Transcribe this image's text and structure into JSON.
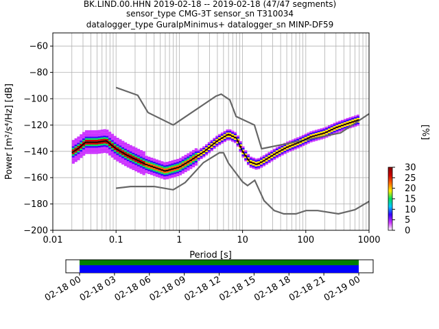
{
  "figure": {
    "title_lines": [
      "BK.LIND.00.HHN   2019-02-18 -- 2019-02-18  (47/47 segments)",
      "sensor_type CMG-3T sensor_sn T310034",
      "datalogger_type GuralpMinimus+ datalogger_sn MINP-DF59"
    ]
  },
  "chart_data": [
    {
      "type": "heatmap",
      "title": "BK.LIND.00.HHN   2019-02-18 -- 2019-02-18  (47/47 segments)",
      "xlabel": "Period [s]",
      "ylabel": "Power [m²/s⁴/Hz] [dB]",
      "x_scale": "log",
      "xlim": [
        0.01,
        1000
      ],
      "ylim": [
        -200,
        -50
      ],
      "x_ticks": [
        0.01,
        0.1,
        1,
        10,
        100,
        1000
      ],
      "x_tick_labels": [
        "0.01",
        "0.1",
        "1",
        "10",
        "100",
        "1000"
      ],
      "y_ticks": [
        -200,
        -180,
        -160,
        -140,
        -120,
        -100,
        -80,
        -60
      ],
      "y_tick_labels": [
        "−200",
        "−180",
        "−160",
        "−140",
        "−120",
        "−100",
        "−80",
        "−60"
      ],
      "grid": true,
      "colorbar": {
        "label": "[%]",
        "range": [
          0,
          30
        ],
        "ticks": [
          0,
          5,
          10,
          15,
          20,
          25,
          30
        ],
        "tick_labels": [
          "0",
          "5",
          "10",
          "15",
          "20",
          "25",
          "30"
        ],
        "colors": [
          "#ffffff",
          "#cc33ff",
          "#3300ff",
          "#00c8ff",
          "#00e060",
          "#ffee00",
          "#ff6600",
          "#cc0000",
          "#880000"
        ]
      },
      "series": [
        {
          "role": "high_noise_model",
          "x": [
            0.1,
            0.22,
            0.32,
            0.8,
            3.8,
            4.6,
            6.3,
            7.9,
            15.4,
            20,
            354.8,
            1000
          ],
          "y": [
            -91.5,
            -97.4,
            -110.5,
            -120,
            -98,
            -96.5,
            -101,
            -113.5,
            -120,
            -138,
            -126,
            -111.5
          ]
        },
        {
          "role": "low_noise_model",
          "x": [
            0.1,
            0.17,
            0.4,
            0.8,
            1.24,
            2.4,
            4.3,
            5,
            6,
            10,
            12,
            15.6,
            21.9,
            31.6,
            45,
            70,
            101,
            154,
            328,
            600,
            1000
          ],
          "y": [
            -168,
            -166.7,
            -166.7,
            -169.2,
            -163.7,
            -148.6,
            -141.1,
            -141.1,
            -149,
            -163.2,
            -166,
            -162,
            -177.5,
            -185,
            -187.5,
            -187.5,
            -185,
            -185,
            -187.5,
            -184.4,
            -178
          ]
        },
        {
          "role": "median_psd",
          "x": [
            0.02,
            0.025,
            0.033,
            0.05,
            0.07,
            0.1,
            0.15,
            0.3,
            0.6,
            1,
            1.5,
            2.5,
            4,
            6,
            8,
            10,
            13,
            17,
            22,
            35,
            50,
            80,
            120,
            200,
            300,
            450,
            700
          ],
          "y": [
            -141,
            -138,
            -133,
            -133,
            -132,
            -138,
            -143,
            -150,
            -155,
            -152,
            -147,
            -140,
            -132,
            -127,
            -130,
            -140,
            -148,
            -150,
            -147,
            -141,
            -137,
            -133,
            -129,
            -126,
            -122,
            -119,
            -116
          ]
        }
      ]
    },
    {
      "type": "bar",
      "role": "data_availability_timeline",
      "x_start": "02-18 00",
      "x_end": "02-19 00",
      "tick_labels": [
        "02-18 00",
        "02-18 03",
        "02-18 06",
        "02-18 09",
        "02-18 12",
        "02-18 15",
        "02-18 18",
        "02-18 21",
        "02-19 00"
      ],
      "series": [
        {
          "band": "top",
          "color": "#008000",
          "start_hour": 0,
          "end_hour": 24
        },
        {
          "band": "bottom",
          "color": "#0000ff",
          "start_hour": 0,
          "end_hour": 24
        }
      ]
    }
  ]
}
